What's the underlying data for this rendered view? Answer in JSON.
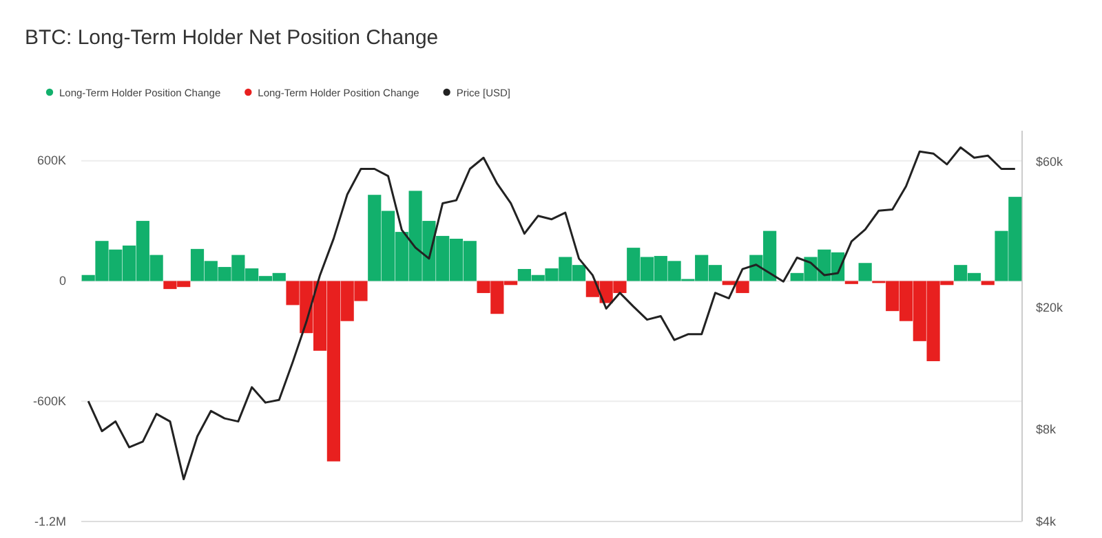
{
  "chart_data": {
    "type": "bar",
    "title": "BTC: Long-Term Holder Net Position Change",
    "categories": [
      null,
      null,
      null,
      null,
      null,
      null,
      null,
      null,
      null,
      null,
      null,
      null,
      null,
      null,
      null,
      null,
      null,
      null,
      null,
      null,
      null,
      null,
      null,
      null,
      null,
      null,
      null,
      null,
      null,
      null,
      null,
      null,
      null,
      null,
      null,
      null,
      null,
      null,
      null,
      null,
      null,
      null,
      null,
      null,
      null,
      null,
      null,
      null,
      null,
      null,
      null,
      null,
      null,
      null,
      null,
      null,
      null,
      null,
      null,
      null,
      null,
      null,
      null,
      null,
      null,
      null,
      null,
      null,
      null
    ],
    "series": [
      {
        "name": "Long-Term Holder Position Change",
        "color": "#12b06c",
        "values": [
          30000,
          200000,
          157000,
          177000,
          300000,
          130000,
          null,
          null,
          160000,
          100000,
          70000,
          130000,
          63000,
          25000,
          40000,
          null,
          null,
          null,
          null,
          null,
          null,
          430000,
          350000,
          245000,
          450000,
          300000,
          225000,
          211000,
          200000,
          null,
          null,
          null,
          60000,
          30000,
          63000,
          120000,
          80000,
          null,
          null,
          null,
          166000,
          120000,
          125000,
          100000,
          10000,
          130000,
          80000,
          null,
          null,
          130000,
          250000,
          null,
          40000,
          120000,
          157000,
          143000,
          null,
          90000,
          null,
          null,
          null,
          null,
          null,
          null,
          80000,
          40000,
          null,
          250000,
          420000
        ]
      },
      {
        "name": "Long-Term Holder Position Change",
        "color": "#e8201f",
        "values": [
          null,
          null,
          null,
          null,
          null,
          null,
          -40000,
          -30000,
          null,
          null,
          null,
          null,
          null,
          null,
          null,
          -120000,
          -260000,
          -348000,
          -900000,
          -200000,
          -100000,
          null,
          null,
          null,
          null,
          null,
          null,
          null,
          null,
          -60000,
          -164000,
          -20000,
          null,
          null,
          null,
          null,
          null,
          -80000,
          -110000,
          -60000,
          null,
          null,
          null,
          null,
          null,
          null,
          null,
          -20000,
          -60000,
          null,
          null,
          null,
          null,
          null,
          null,
          null,
          -15000,
          null,
          -10000,
          -150000,
          -200000,
          -300000,
          -400000,
          -20000,
          null,
          null,
          -20000,
          null,
          null
        ]
      },
      {
        "name": "Price [USD]",
        "color": "#222222",
        "type": "line",
        "axis": "y2",
        "values": [
          9900,
          7900,
          8500,
          7000,
          7300,
          9000,
          8500,
          5500,
          7600,
          9200,
          8700,
          8500,
          11000,
          9800,
          10000,
          13300,
          18000,
          25600,
          33700,
          47000,
          57000,
          57000,
          54000,
          36000,
          31500,
          29000,
          44000,
          45000,
          57000,
          62000,
          51000,
          44000,
          35000,
          40000,
          39000,
          41000,
          29000,
          25600,
          19900,
          22400,
          20200,
          18300,
          18800,
          15700,
          16400,
          16400,
          22400,
          21500,
          26800,
          27700,
          26000,
          24400,
          29200,
          28100,
          25600,
          26000,
          33000,
          36100,
          41600,
          42000,
          50000,
          65000,
          64000,
          59000,
          67000,
          62000,
          63000,
          57000,
          57000
        ]
      }
    ],
    "ylim": [
      -1200000,
      750000
    ],
    "yticks": [
      {
        "value": 600000,
        "label": "600K"
      },
      {
        "value": 0,
        "label": "0"
      },
      {
        "value": -600000,
        "label": "-600K"
      },
      {
        "value": -1200000,
        "label": "-1.2M"
      }
    ],
    "y2lim": [
      4000,
      76000
    ],
    "y2ticks": [
      {
        "value": 60000,
        "label": "$60k"
      },
      {
        "value": 20000,
        "label": "$20k"
      },
      {
        "value": 8000,
        "label": "$8k"
      },
      {
        "value": 4000,
        "label": "$4k"
      }
    ],
    "log": "y2",
    "grid": "y",
    "legend": "top left"
  }
}
